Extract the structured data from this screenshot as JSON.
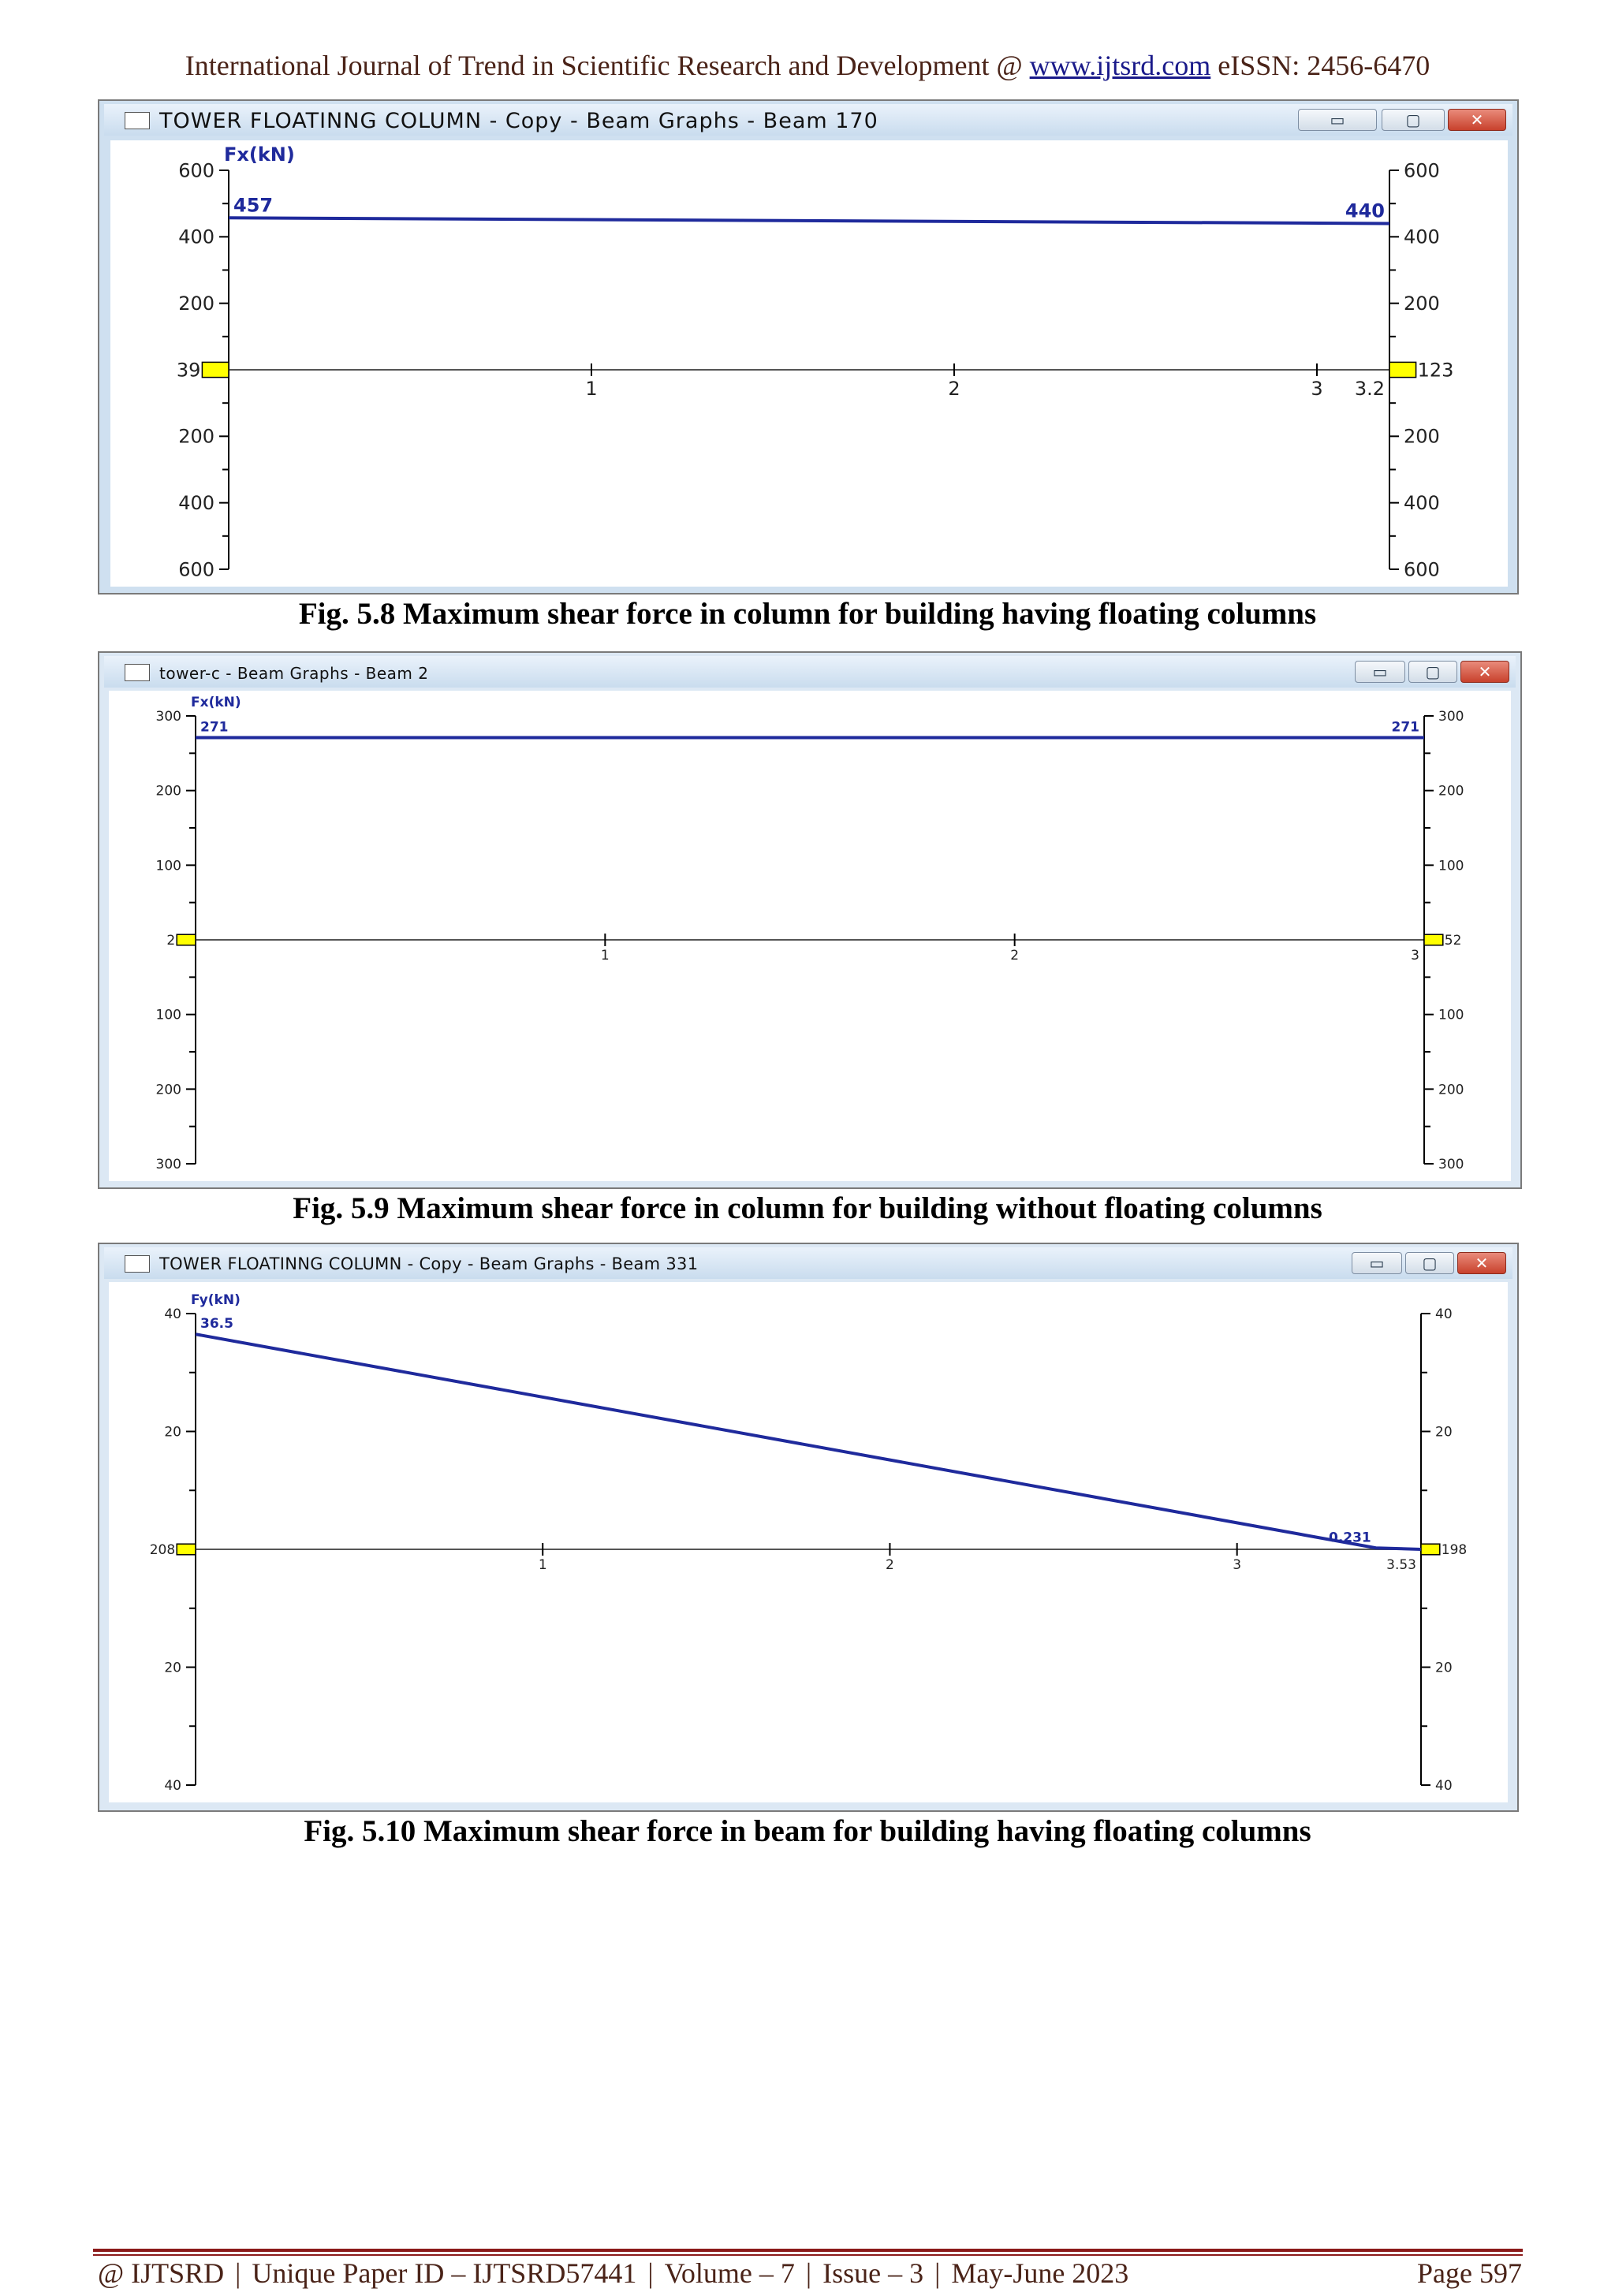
{
  "header": {
    "prefix": "International Journal of Trend in Scientific Research and Development @ ",
    "url": "www.ijtsrd.com",
    "suffix": " eISSN: 2456-6470"
  },
  "figures": [
    {
      "id": "fig-5-8",
      "window_title": "TOWER FLOATINNG COLUMN - Copy - Beam Graphs - Beam 170",
      "caption": "Fig. 5.8 Maximum shear force in column for building having floating columns",
      "chart_data": {
        "type": "line",
        "ylabel": "Fx(kN)",
        "y_ticks_left": [
          "600",
          "400",
          "200",
          "39",
          "200",
          "400",
          "600"
        ],
        "y_ticks_right": [
          "600",
          "400",
          "200",
          "123",
          "200",
          "400",
          "600"
        ],
        "x_ticks": [
          "1",
          "2",
          "3",
          "3.2"
        ],
        "ylim": [
          -600,
          600
        ],
        "xlim": [
          0,
          3.2
        ],
        "series": [
          {
            "x": [
              0,
              3.2
            ],
            "y": [
              457,
              440
            ]
          }
        ],
        "annotations": [
          {
            "text": "457",
            "x": 0,
            "y": 457
          },
          {
            "text": "440",
            "x": 3.2,
            "y": 440
          }
        ],
        "node_labels": {
          "left": "39",
          "right": "123"
        },
        "line_color": "#1f2a9c",
        "node_color": "#ffff00"
      }
    },
    {
      "id": "fig-5-9",
      "window_title": "tower-c - Beam Graphs - Beam 2",
      "caption": "Fig. 5.9 Maximum shear force in column for building without floating columns",
      "chart_data": {
        "type": "line",
        "ylabel": "Fx(kN)",
        "y_ticks_left": [
          "300",
          "200",
          "100",
          "2",
          "100",
          "200",
          "300"
        ],
        "y_ticks_right": [
          "300",
          "200",
          "100",
          "52",
          "100",
          "200",
          "300"
        ],
        "x_ticks": [
          "1",
          "2",
          "3"
        ],
        "ylim": [
          -300,
          300
        ],
        "xlim": [
          0,
          3
        ],
        "series": [
          {
            "x": [
              0,
              3
            ],
            "y": [
              271,
              271
            ]
          }
        ],
        "annotations": [
          {
            "text": "271",
            "x": 0,
            "y": 271
          },
          {
            "text": "271",
            "x": 3,
            "y": 271
          }
        ],
        "node_labels": {
          "left": "2",
          "right": "52"
        },
        "line_color": "#1f2a9c",
        "node_color": "#ffff00"
      }
    },
    {
      "id": "fig-5-10",
      "window_title": "TOWER FLOATINNG COLUMN - Copy - Beam Graphs - Beam 331",
      "caption": "Fig. 5.10 Maximum shear force in beam for building having floating columns",
      "chart_data": {
        "type": "line",
        "ylabel": "Fy(kN)",
        "y_ticks_left": [
          "40",
          "20",
          "208",
          "20",
          "40"
        ],
        "y_ticks_right": [
          "40",
          "20",
          "198",
          "20",
          "40"
        ],
        "x_ticks": [
          "1",
          "2",
          "3",
          "3.53"
        ],
        "ylim": [
          -40,
          40
        ],
        "xlim": [
          0,
          3.53
        ],
        "series": [
          {
            "x": [
              0,
              3.4,
              3.53
            ],
            "y": [
              36.5,
              0.231,
              0
            ]
          }
        ],
        "annotations": [
          {
            "text": "36.5",
            "x": 0,
            "y": 36.5
          },
          {
            "text": "0.231",
            "x": 3.4,
            "y": 0.231
          }
        ],
        "node_labels": {
          "left": "208",
          "right": "198"
        },
        "line_color": "#1f2a9c",
        "node_color": "#ffff00"
      }
    }
  ],
  "footer": {
    "journal": "@ IJTSRD",
    "paper_id": "Unique Paper ID – IJTSRD57441",
    "volume": "Volume – 7",
    "issue": "Issue – 3",
    "date": "May-June 2023",
    "page": "Page 597",
    "separator": "|"
  },
  "colors": {
    "header_text": "#4a2318",
    "footer_rule": "#8b1a1a",
    "window_frame": "#cfe0f0"
  }
}
